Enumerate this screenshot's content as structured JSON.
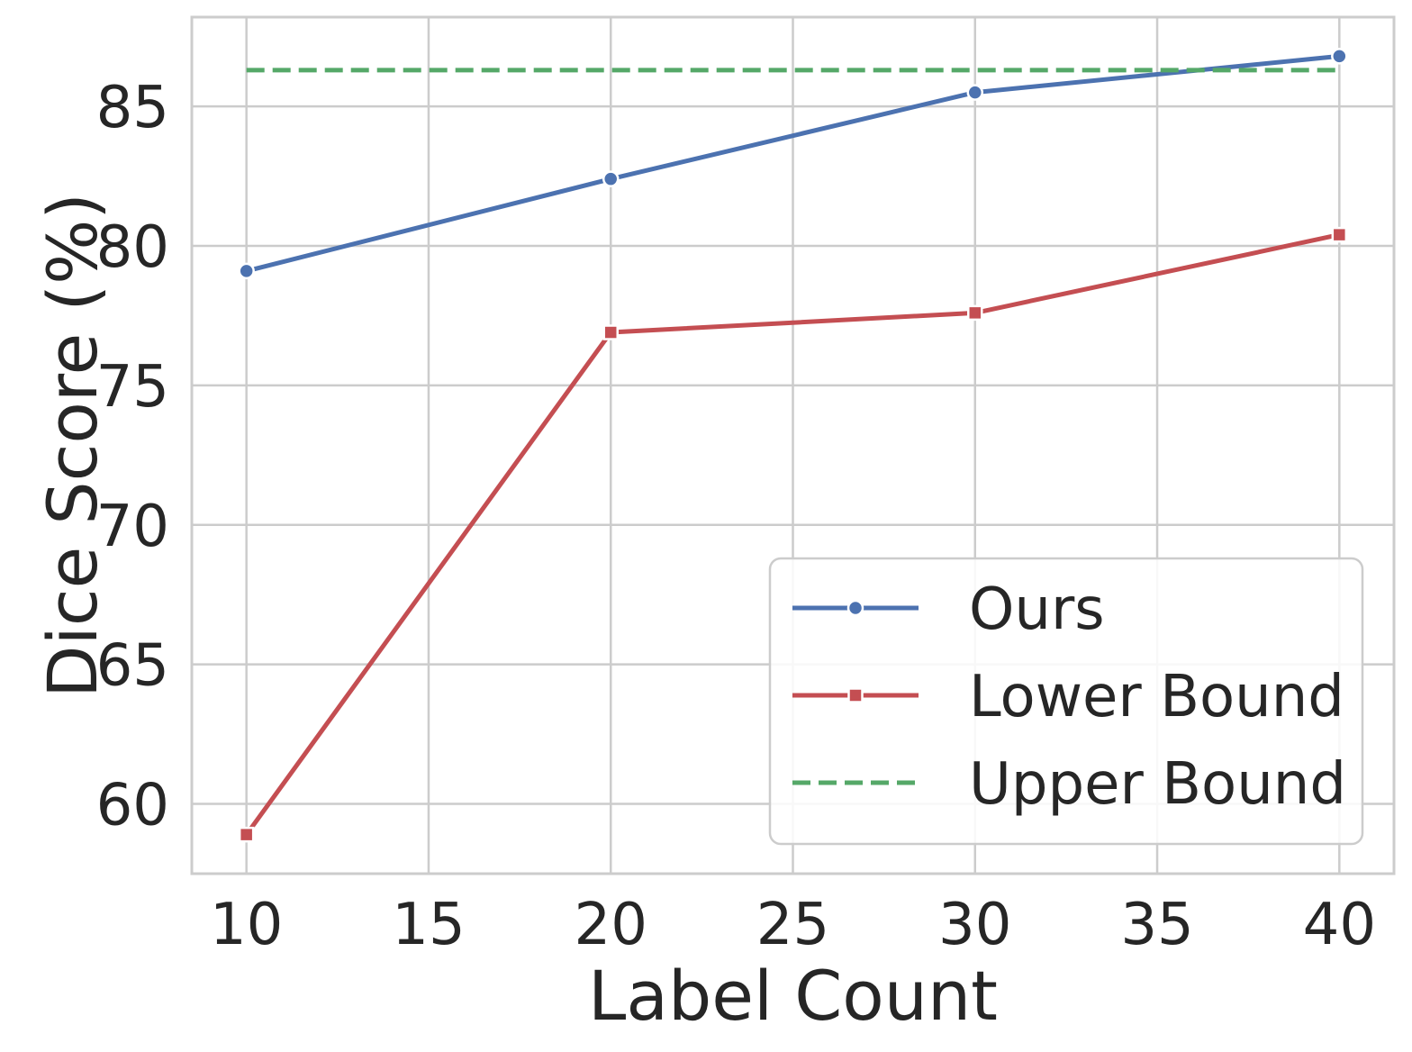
{
  "chart_data": {
    "type": "line",
    "xlabel": "Label Count",
    "ylabel": "Dice Score (%)",
    "xlim": [
      8.5,
      41.5
    ],
    "ylim": [
      57.5,
      88.2
    ],
    "xticks": [
      10,
      15,
      20,
      25,
      30,
      35,
      40
    ],
    "yticks": [
      60,
      65,
      70,
      75,
      80,
      85
    ],
    "x": [
      10,
      20,
      30,
      40
    ],
    "grid": true,
    "legend_position": "lower-right",
    "series": [
      {
        "name": "Ours",
        "values": [
          79.1,
          82.4,
          85.5,
          86.8
        ],
        "color": "#4c72b0",
        "marker": "circle",
        "style": "solid"
      },
      {
        "name": "Lower Bound",
        "values": [
          58.9,
          76.9,
          77.6,
          80.4
        ],
        "color": "#c44e52",
        "marker": "square",
        "style": "solid"
      },
      {
        "name": "Upper Bound",
        "values": [
          86.3,
          86.3,
          86.3,
          86.3
        ],
        "color": "#55a868",
        "marker": "none",
        "style": "dashed"
      }
    ]
  }
}
